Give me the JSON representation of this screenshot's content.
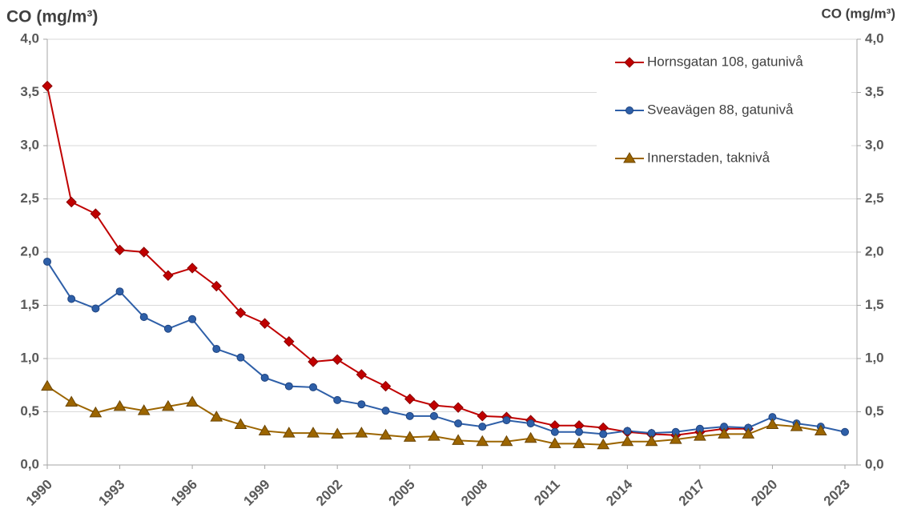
{
  "chart_data": {
    "type": "line",
    "ylabel": "CO (mg/m³)",
    "y2label": "CO (mg/m³)",
    "x": [
      1990,
      1991,
      1992,
      1993,
      1994,
      1995,
      1996,
      1997,
      1998,
      1999,
      2000,
      2001,
      2002,
      2003,
      2004,
      2005,
      2006,
      2007,
      2008,
      2009,
      2010,
      2011,
      2012,
      2013,
      2014,
      2015,
      2016,
      2017,
      2018,
      2019,
      2020,
      2021,
      2022,
      2023
    ],
    "xlim": [
      1990,
      2023
    ],
    "xticks": [
      1990,
      1993,
      1996,
      1999,
      2002,
      2005,
      2008,
      2011,
      2014,
      2017,
      2020,
      2023
    ],
    "ylim": [
      0,
      4
    ],
    "yticks": [
      {
        "value": 0,
        "label": "0,0"
      },
      {
        "value": 0.5,
        "label": "0,5"
      },
      {
        "value": 1,
        "label": "1,0"
      },
      {
        "value": 1.5,
        "label": "1,5"
      },
      {
        "value": 2,
        "label": "2,0"
      },
      {
        "value": 2.5,
        "label": "2,5"
      },
      {
        "value": 3,
        "label": "3,0"
      },
      {
        "value": 3.5,
        "label": "3,5"
      },
      {
        "value": 4,
        "label": "4,0"
      }
    ],
    "y2lim": [
      0,
      4
    ],
    "y2ticks": [
      {
        "value": 0,
        "label": "0,0"
      },
      {
        "value": 0.5,
        "label": "0,5"
      },
      {
        "value": 1,
        "label": "1,0"
      },
      {
        "value": 1.5,
        "label": "1,5"
      },
      {
        "value": 2,
        "label": "2,0"
      },
      {
        "value": 2.5,
        "label": "2,5"
      },
      {
        "value": 3,
        "label": "3,0"
      },
      {
        "value": 3.5,
        "label": "3,5"
      },
      {
        "value": 4,
        "label": "4,0"
      }
    ],
    "grid": true,
    "legend": "upper-right",
    "series": [
      {
        "name": "Hornsgatan 108, gatunivå",
        "color": "#c00000",
        "marker": "diamond",
        "values": [
          3.56,
          2.47,
          2.36,
          2.02,
          2.0,
          1.78,
          1.85,
          1.68,
          1.43,
          1.33,
          1.16,
          0.97,
          0.99,
          0.85,
          0.74,
          0.62,
          0.56,
          0.54,
          0.46,
          0.45,
          0.42,
          0.37,
          0.37,
          0.35,
          0.31,
          0.29,
          0.28,
          0.31,
          0.34,
          0.34,
          null,
          null,
          null,
          null
        ]
      },
      {
        "name": "Sveavägen 88, gatunivå",
        "color": "#2e5fa8",
        "marker": "circle",
        "values": [
          1.91,
          1.56,
          1.47,
          1.63,
          1.39,
          1.28,
          1.37,
          1.09,
          1.01,
          0.82,
          0.74,
          0.73,
          0.61,
          0.57,
          0.51,
          0.46,
          0.46,
          0.39,
          0.36,
          0.42,
          0.39,
          0.31,
          0.31,
          0.29,
          0.32,
          0.3,
          0.31,
          0.34,
          0.36,
          0.35,
          0.45,
          0.39,
          0.36,
          0.31
        ]
      },
      {
        "name": "Innerstaden, taknivå",
        "color": "#9c6500",
        "marker": "triangle",
        "values": [
          0.74,
          0.59,
          0.49,
          0.55,
          0.51,
          0.55,
          0.59,
          0.45,
          0.38,
          0.32,
          0.3,
          0.3,
          0.29,
          0.3,
          0.28,
          0.26,
          0.27,
          0.23,
          0.22,
          0.22,
          0.25,
          0.2,
          0.2,
          0.19,
          0.22,
          0.22,
          0.24,
          0.27,
          0.29,
          0.29,
          0.38,
          0.36,
          0.32,
          null
        ]
      }
    ]
  }
}
